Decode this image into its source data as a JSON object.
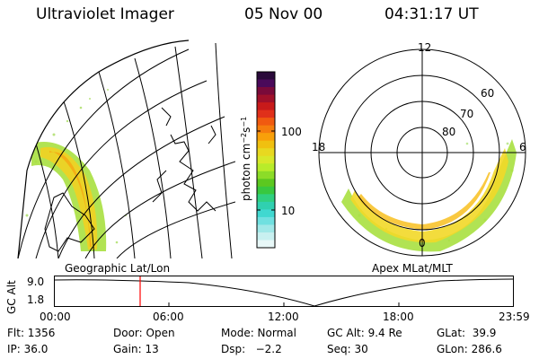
{
  "header": {
    "instrument": "Ultraviolet Imager",
    "date": "05 Nov 00",
    "time": "04:31:17 UT"
  },
  "colorbar": {
    "label": "photon cm",
    "label_sup1": "−2",
    "label_mid": "s",
    "label_sup2": "−1",
    "tick_labels": [
      "100",
      "10"
    ],
    "colors": [
      "#2a0a3a",
      "#4a0a5a",
      "#7a0a3a",
      "#a0102a",
      "#c81a1a",
      "#e0301a",
      "#f05a10",
      "#f57d0d",
      "#f8a00a",
      "#f0c010",
      "#e8d820",
      "#d8e82a",
      "#b8ec2a",
      "#8cdc28",
      "#5cc820",
      "#38c840",
      "#30d080",
      "#30d0b0",
      "#40d8d0",
      "#70e0e0",
      "#a0e8e8",
      "#c8f0f0",
      "#e8f8f8"
    ],
    "scale": "log"
  },
  "left_map": {
    "caption": "Geographic Lat/Lon"
  },
  "right_map": {
    "caption": "Apex MLat/MLT",
    "mlt_labels": {
      "top": "12",
      "left": "18",
      "right": "6",
      "bottom": "0"
    },
    "lat_labels": [
      "80",
      "70",
      "60"
    ]
  },
  "altitude_plot": {
    "ylabel": "GC Alt",
    "ytick_labels": [
      "9.0",
      "1.8"
    ],
    "time_labels": [
      "00:00",
      "06:00",
      "12:00",
      "18:00",
      "23:59"
    ],
    "current_marker_time": "04:31",
    "marker_color": "#ff0000"
  },
  "status": {
    "flt": "Flt: 1356",
    "ip": "IP: 36.0",
    "door": "Door: Open",
    "gain": "Gain: 13",
    "mode": "Mode: Normal",
    "dsp": "Dsp:   −2.2",
    "gc_alt": "GC Alt: 9.4 Re",
    "seq": "Seq: 30",
    "glat": "GLat:  39.9",
    "glon": "GLon: 286.6"
  }
}
